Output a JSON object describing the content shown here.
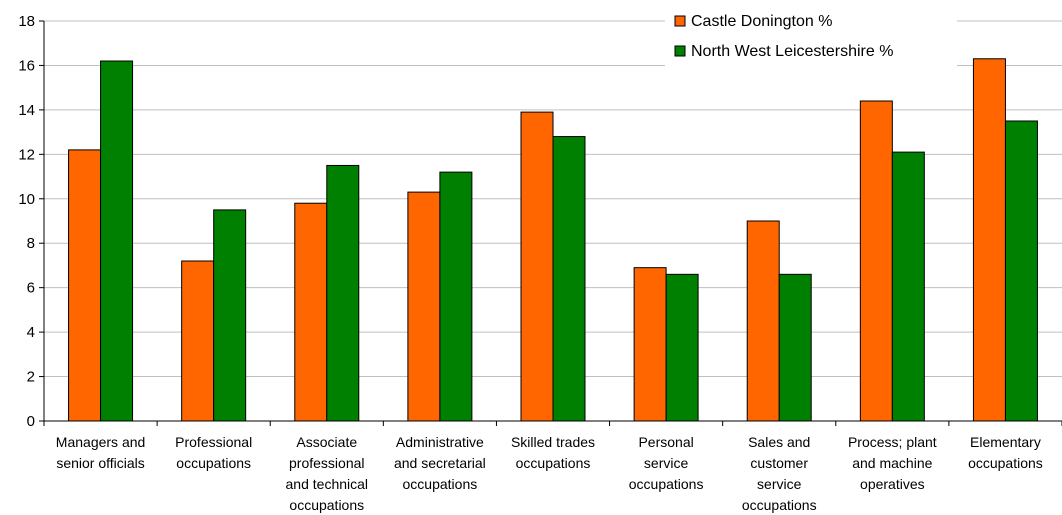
{
  "chart_data": {
    "type": "bar",
    "categories": [
      [
        "Managers and",
        "senior officials"
      ],
      [
        "Professional",
        "occupations"
      ],
      [
        "Associate",
        "professional",
        "and technical",
        "occupations"
      ],
      [
        "Administrative",
        "and secretarial",
        "occupations"
      ],
      [
        "Skilled trades",
        "occupations"
      ],
      [
        "Personal",
        "service",
        "occupations"
      ],
      [
        "Sales and",
        "customer",
        "service",
        "occupations"
      ],
      [
        "Process; plant",
        "and machine",
        "operatives"
      ],
      [
        "Elementary",
        "occupations"
      ]
    ],
    "series": [
      {
        "name": "Castle Donington %",
        "color": "#ff6600",
        "values": [
          12.2,
          7.2,
          9.8,
          10.3,
          13.9,
          6.9,
          9.0,
          14.4,
          16.3
        ]
      },
      {
        "name": "North West Leicestershire %",
        "color": "#008000",
        "values": [
          16.2,
          9.5,
          11.5,
          11.2,
          12.8,
          6.6,
          6.6,
          12.1,
          13.5
        ]
      }
    ],
    "ylim": [
      0,
      18
    ],
    "yticks": [
      0,
      2,
      4,
      6,
      8,
      10,
      12,
      14,
      16,
      18
    ],
    "grid": true,
    "legend_position": "top-right"
  }
}
